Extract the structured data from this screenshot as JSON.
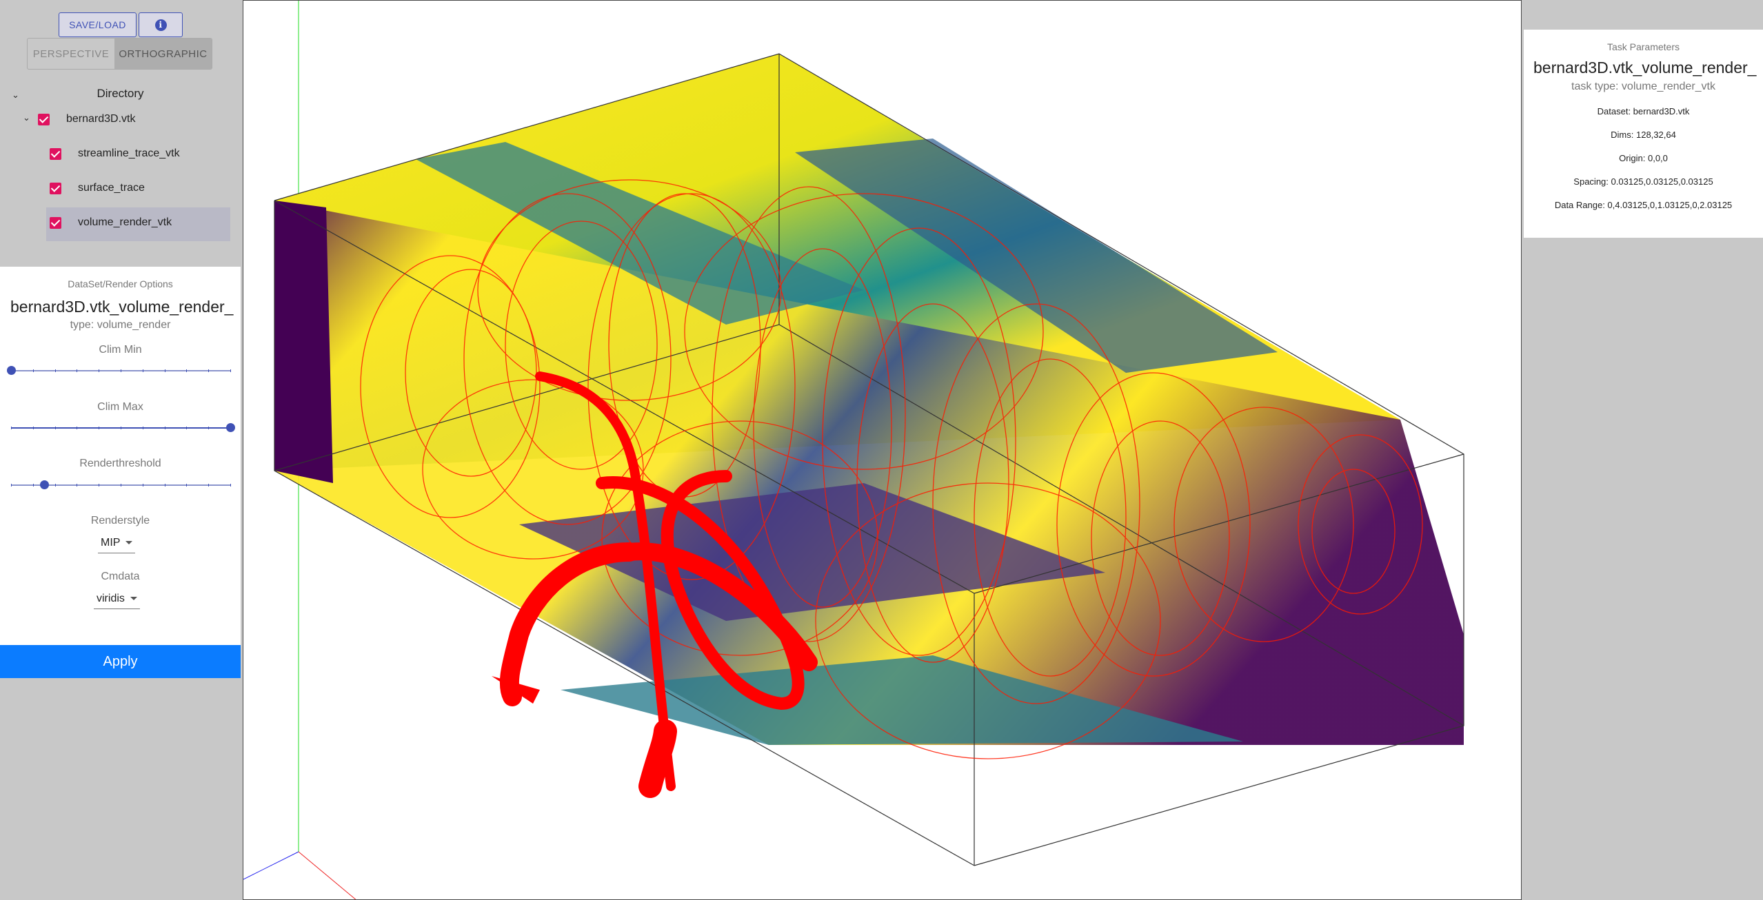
{
  "toolbar": {
    "save_load_label": "SAVE/LOAD",
    "info_icon": "info-icon"
  },
  "view_toggle": {
    "perspective_label": "PERSPECTIVE",
    "orthographic_label": "ORTHOGRAPHIC",
    "selected": "ORTHOGRAPHIC"
  },
  "directory": {
    "title": "Directory",
    "root": {
      "label": "bernard3D.vtk",
      "checked": true
    },
    "children": [
      {
        "label": "streamline_trace_vtk",
        "checked": true
      },
      {
        "label": "surface_trace",
        "checked": true
      },
      {
        "label": "volume_render_vtk",
        "checked": true,
        "selected": true
      }
    ]
  },
  "options_panel": {
    "header": "DataSet/Render Options",
    "name": "bernard3D.vtk_volume_render_",
    "type_text": "type: volume_render",
    "sliders": [
      {
        "label": "Clim Min",
        "value": 0.0
      },
      {
        "label": "Clim Max",
        "value": 1.0
      },
      {
        "label": "Renderthreshold",
        "value": 0.15
      }
    ],
    "renderstyle": {
      "label": "Renderstyle",
      "value": "MIP"
    },
    "cmdata": {
      "label": "Cmdata",
      "value": "viridis"
    },
    "apply_label": "Apply"
  },
  "task_parameters": {
    "header": "Task Parameters",
    "name": "bernard3D.vtk_volume_render_",
    "task_type": "task type: volume_render_vtk",
    "dataset": "Dataset: bernard3D.vtk",
    "dims": "Dims: 128,32,64",
    "origin": "Origin: 0,0,0",
    "spacing": "Spacing: 0.03125,0.03125,0.03125",
    "data_range": "Data Range: 0,4.03125,0,1.03125,0,2.03125"
  },
  "colors": {
    "accent": "#3f51b5",
    "checkbox": "#e0115f",
    "apply": "#0b7cff",
    "streamline": "#ff0000"
  }
}
